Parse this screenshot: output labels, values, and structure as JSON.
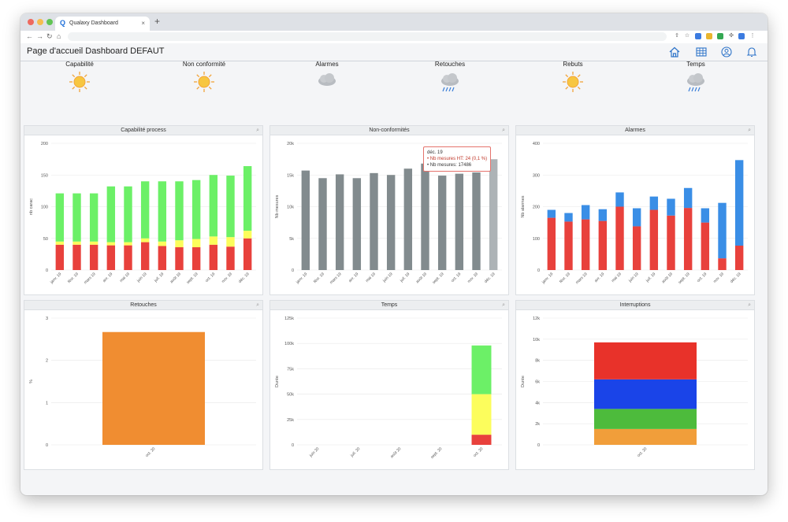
{
  "browser": {
    "tab_title": "Qualaxy Dashboard",
    "tab_close": "×",
    "new_tab": "+",
    "favicon_letter": "Q",
    "traffic_colors": [
      "#ee6a5f",
      "#f5bd4f",
      "#61c454"
    ]
  },
  "header": {
    "title": "Page d'accueil Dashboard DEFAUT",
    "icons": [
      "home-icon",
      "grid-icon",
      "user-icon",
      "bell-icon"
    ]
  },
  "weather": [
    {
      "label": "Capabilité",
      "icon": "sun-icon"
    },
    {
      "label": "Non conformité",
      "icon": "sun-icon"
    },
    {
      "label": "Alarmes",
      "icon": "cloud-icon"
    },
    {
      "label": "Retouches",
      "icon": "rain-cloud-icon"
    },
    {
      "label": "Rebuts",
      "icon": "sun-icon"
    },
    {
      "label": "Temps",
      "icon": "rain-cloud-icon"
    }
  ],
  "tooltip": {
    "title": "déc. 19",
    "line1": "• Nb mesures HT: 24 (0,1 %)",
    "line2": "• Nb mesures: 17486"
  },
  "chart_data": [
    {
      "id": "capabilite",
      "title": "Capabilité process",
      "type": "bar",
      "stacked": true,
      "ylabel": "nb carac",
      "ylim": [
        0,
        200
      ],
      "yticks": [
        0,
        50,
        100,
        150,
        200
      ],
      "categories": [
        "janv. 19",
        "févr. 19",
        "mars 19",
        "avr. 19",
        "mai 19",
        "juin 19",
        "juil. 19",
        "août 19",
        "sept. 19",
        "oct. 19",
        "nov. 19",
        "déc. 19"
      ],
      "series": [
        {
          "color": "#e8413c",
          "values": [
            40,
            40,
            40,
            39,
            39,
            44,
            38,
            36,
            36,
            40,
            37,
            50
          ]
        },
        {
          "color": "#fcfd5c",
          "values": [
            5,
            5,
            5,
            5,
            5,
            6,
            7,
            11,
            13,
            13,
            15,
            12
          ]
        },
        {
          "color": "#6cf067",
          "values": [
            76,
            76,
            76,
            88,
            88,
            90,
            95,
            93,
            93,
            97,
            97,
            102
          ]
        }
      ]
    },
    {
      "id": "nonconformites",
      "title": "Non-conformités",
      "type": "bar",
      "ylabel": "Nb mesures",
      "ylim": [
        0,
        20000
      ],
      "yticks": [
        0,
        5000,
        10000,
        15000,
        20000
      ],
      "ytick_labels": [
        "0",
        "5k",
        "10k",
        "15k",
        "20k"
      ],
      "categories": [
        "janv. 19",
        "févr. 19",
        "mars 19",
        "avr. 19",
        "mai 19",
        "juin 19",
        "juil. 19",
        "août 19",
        "sept. 19",
        "oct. 19",
        "nov. 19",
        "déc. 19"
      ],
      "series": [
        {
          "color": "#828b8e",
          "values": [
            15700,
            14500,
            15100,
            14500,
            15300,
            15000,
            16000,
            16800,
            14900,
            15200,
            15400,
            17486
          ]
        }
      ],
      "highlight_index": 11,
      "highlight_color": "#adb3b6"
    },
    {
      "id": "alarmes",
      "title": "Alarmes",
      "type": "bar",
      "stacked": true,
      "ylabel": "Nb alarmes",
      "ylim": [
        0,
        400
      ],
      "yticks": [
        0,
        100,
        200,
        300,
        400
      ],
      "categories": [
        "janv. 19",
        "févr. 19",
        "mars 19",
        "avr. 19",
        "mai 19",
        "juin 19",
        "juil. 19",
        "août 19",
        "sept. 19",
        "oct. 19",
        "nov. 19",
        "déc. 19"
      ],
      "series": [
        {
          "color": "#e8413c",
          "values": [
            165,
            153,
            160,
            155,
            200,
            138,
            190,
            172,
            196,
            150,
            37,
            77
          ]
        },
        {
          "color": "#3a8ee6",
          "values": [
            25,
            27,
            45,
            37,
            45,
            57,
            42,
            53,
            63,
            45,
            175,
            270
          ]
        }
      ]
    },
    {
      "id": "retouches",
      "title": "Retouches",
      "type": "bar",
      "ylabel": "%",
      "ylim": [
        0,
        3
      ],
      "yticks": [
        0,
        1,
        2,
        3
      ],
      "categories": [
        "oct. 20"
      ],
      "series": [
        {
          "color": "#f08d31",
          "values": [
            2.67
          ]
        }
      ]
    },
    {
      "id": "temps",
      "title": "Temps",
      "type": "bar",
      "stacked": true,
      "ylabel": "Durée",
      "ylim": [
        0,
        125000
      ],
      "yticks": [
        0,
        25000,
        50000,
        75000,
        100000,
        125000
      ],
      "ytick_labels": [
        "0",
        "25k",
        "50k",
        "75k",
        "100k",
        "125k"
      ],
      "categories": [
        "juin 20",
        "juil. 20",
        "août 20",
        "sept. 20",
        "oct. 20"
      ],
      "series": [
        {
          "color": "#e8413c",
          "values": [
            0,
            0,
            0,
            0,
            10000
          ]
        },
        {
          "color": "#fcfd5c",
          "values": [
            0,
            0,
            0,
            0,
            40000
          ]
        },
        {
          "color": "#6cf067",
          "values": [
            0,
            0,
            0,
            0,
            48000
          ]
        }
      ]
    },
    {
      "id": "interruptions",
      "title": "Interruptions",
      "type": "bar",
      "stacked": true,
      "ylabel": "Durée",
      "ylim": [
        0,
        12000
      ],
      "yticks": [
        0,
        2000,
        4000,
        6000,
        8000,
        10000,
        12000
      ],
      "ytick_labels": [
        "0",
        "2k",
        "4k",
        "6k",
        "8k",
        "10k",
        "12k"
      ],
      "categories": [
        "oct. 20"
      ],
      "series": [
        {
          "color": "#f19e3a",
          "values": [
            1500
          ]
        },
        {
          "color": "#4dbb3c",
          "values": [
            1900
          ]
        },
        {
          "color": "#1a44e8",
          "values": [
            2800
          ]
        },
        {
          "color": "#e8322a",
          "values": [
            3500
          ]
        }
      ]
    }
  ]
}
